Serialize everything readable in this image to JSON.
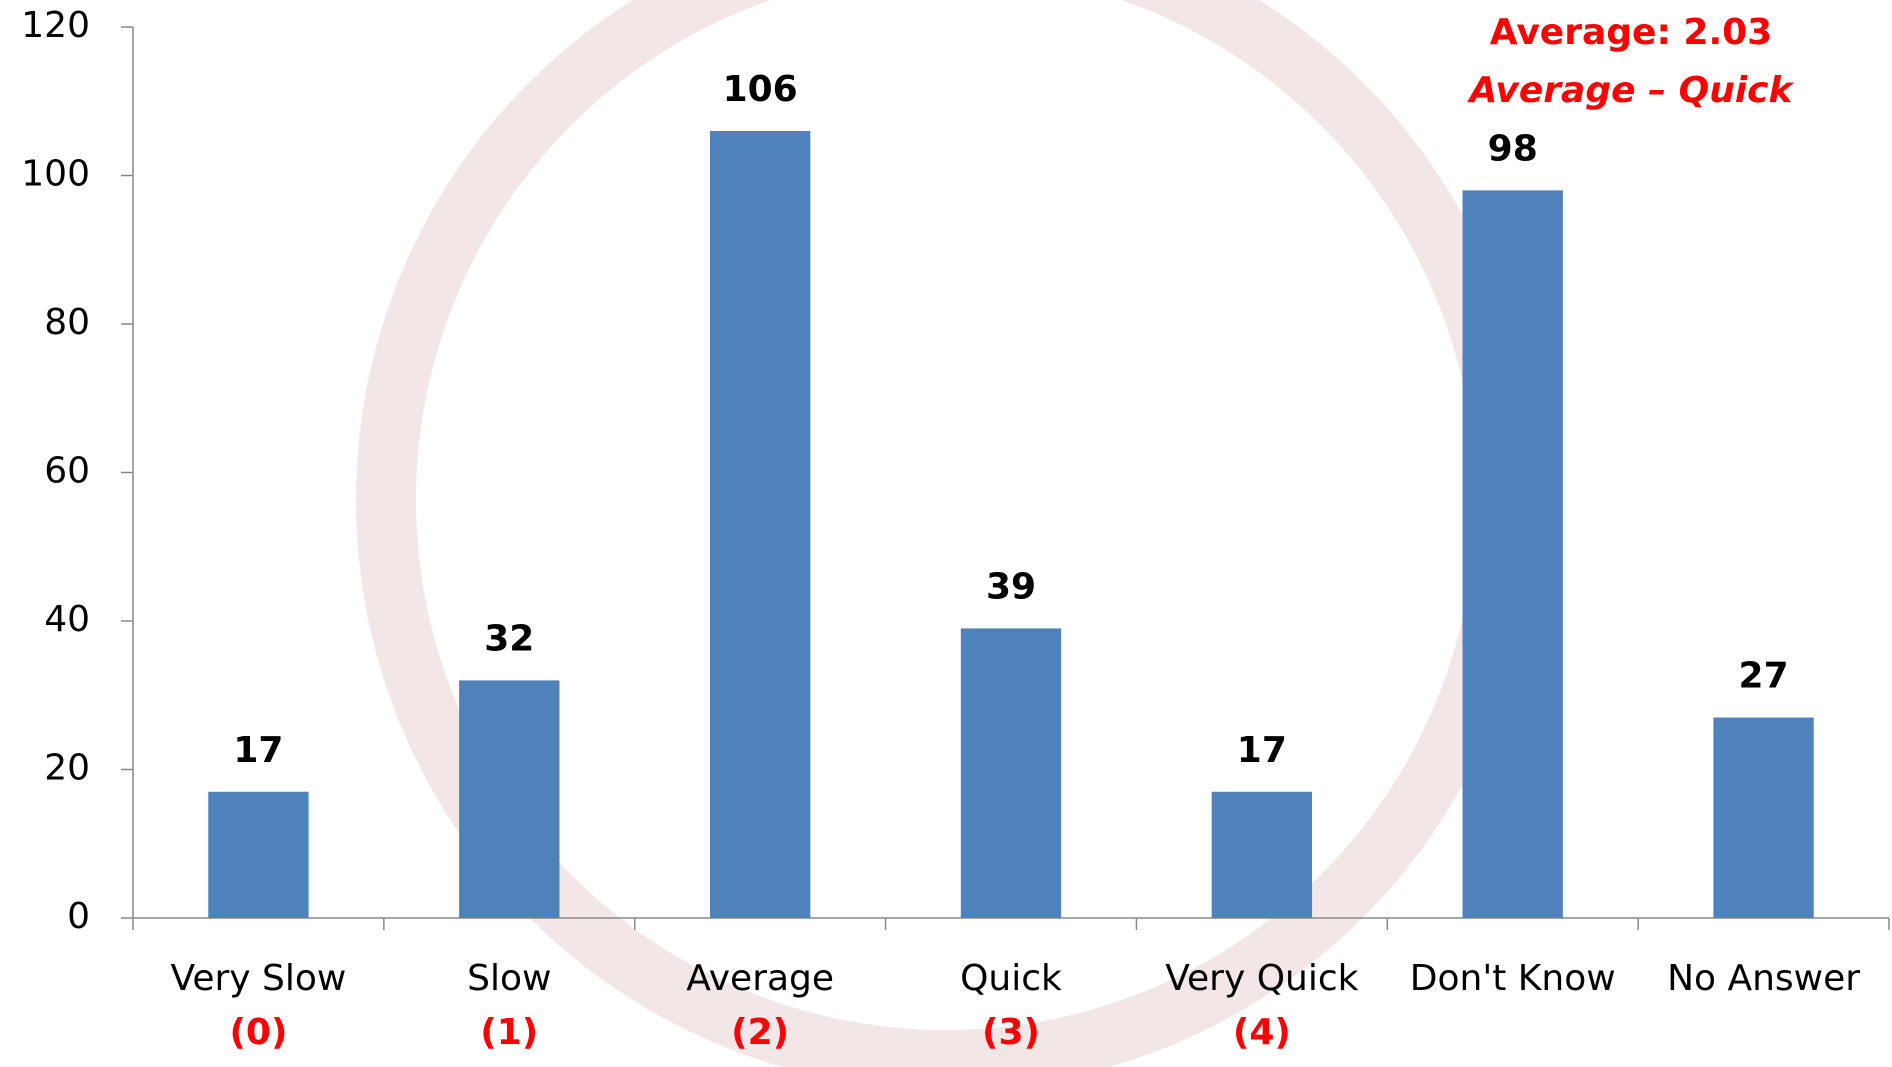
{
  "chart_data": {
    "type": "bar",
    "categories": [
      "Very Slow",
      "Slow",
      "Average",
      "Quick",
      "Very Quick",
      "Don't Know",
      "No Answer"
    ],
    "category_scores": [
      "(0)",
      "(1)",
      "(2)",
      "(3)",
      "(4)",
      null,
      null
    ],
    "values": [
      17,
      32,
      106,
      39,
      17,
      98,
      27
    ],
    "color": "#4f81bd",
    "ylim": [
      0,
      120
    ],
    "yticks": [
      0,
      20,
      40,
      60,
      80,
      100,
      120
    ],
    "grid": false,
    "annotations": [
      "Average: 2.03",
      "Average – Quick"
    ],
    "annotation_color": "#ff0000"
  }
}
